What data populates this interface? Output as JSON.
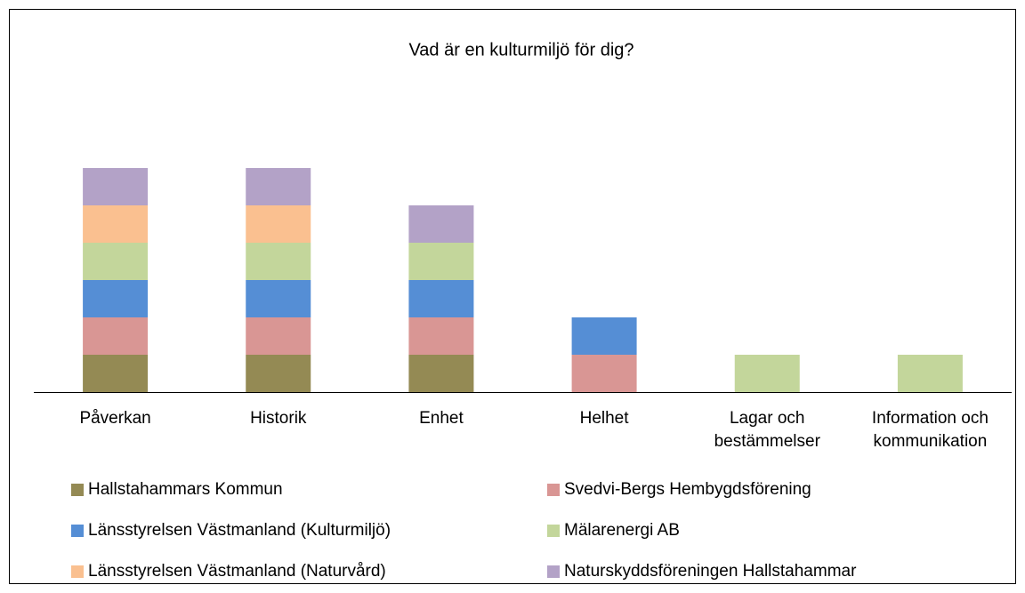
{
  "chart_data": {
    "type": "stacked_bar",
    "title": "Vad är en kulturmiljö för dig?",
    "categories": [
      "Påverkan",
      "Historik",
      "Enhet",
      "Helhet",
      "Lagar och\nbestämmelser",
      "Information och\nkommunikation"
    ],
    "series": [
      {
        "name": "Hallstahammars Kommun",
        "color": "#948a54",
        "values": [
          1,
          1,
          1,
          0,
          0,
          0
        ]
      },
      {
        "name": "Svedvi-Bergs Hembygdsförening",
        "color": "#d99694",
        "values": [
          1,
          1,
          1,
          1,
          0,
          0
        ]
      },
      {
        "name": "Länsstyrelsen Västmanland (Kulturmiljö)",
        "color": "#558ed5",
        "values": [
          1,
          1,
          1,
          1,
          0,
          0
        ]
      },
      {
        "name": "Mälarenergi AB",
        "color": "#c3d69b",
        "values": [
          1,
          1,
          1,
          0,
          1,
          1
        ]
      },
      {
        "name": "Länsstyrelsen Västmanland (Naturvård)",
        "color": "#fac090",
        "values": [
          1,
          1,
          0,
          0,
          0,
          0
        ]
      },
      {
        "name": "Naturskyddsföreningen Hallstahammar",
        "color": "#b3a2c7",
        "values": [
          1,
          1,
          1,
          0,
          0,
          0
        ]
      }
    ]
  }
}
